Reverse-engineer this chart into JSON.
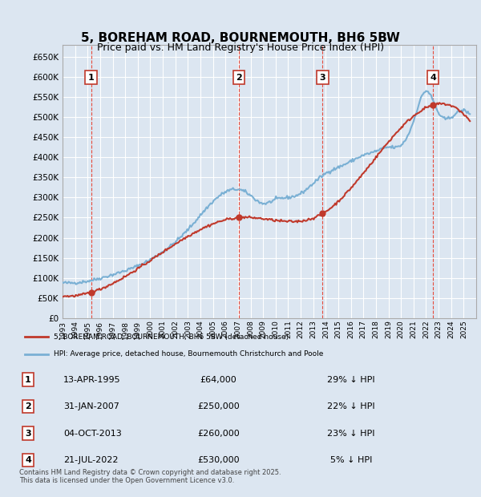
{
  "title": "5, BOREHAM ROAD, BOURNEMOUTH, BH6 5BW",
  "subtitle": "Price paid vs. HM Land Registry's House Price Index (HPI)",
  "ylabel": "",
  "ylim": [
    0,
    680000
  ],
  "yticks": [
    0,
    50000,
    100000,
    150000,
    200000,
    250000,
    300000,
    350000,
    400000,
    450000,
    500000,
    550000,
    600000,
    650000
  ],
  "xlim_start": 1993.0,
  "xlim_end": 2026.0,
  "bg_color": "#dce6f1",
  "plot_bg_color": "#dce6f1",
  "grid_color": "#ffffff",
  "hpi_color": "#7ab0d4",
  "price_color": "#c0392b",
  "sale_marker_color": "#c0392b",
  "vline_color": "#e74c3c",
  "box_color": "#c0392b",
  "legend_bg": "#ffffff",
  "legend_border": "#aaaaaa",
  "transactions": [
    {
      "num": 1,
      "date": "13-APR-1995",
      "date_x": 1995.28,
      "price": 64000,
      "label": "29% ↓ HPI"
    },
    {
      "num": 2,
      "date": "31-JAN-2007",
      "date_x": 2007.08,
      "price": 250000,
      "label": "22% ↓ HPI"
    },
    {
      "num": 3,
      "date": "04-OCT-2013",
      "date_x": 2013.75,
      "price": 260000,
      "label": "23% ↓ HPI"
    },
    {
      "num": 4,
      "date": "21-JUL-2022",
      "date_x": 2022.55,
      "price": 530000,
      "label": "5% ↓ HPI"
    }
  ],
  "footer": "Contains HM Land Registry data © Crown copyright and database right 2025.\nThis data is licensed under the Open Government Licence v3.0.",
  "legend_line1": "5, BOREHAM ROAD, BOURNEMOUTH, BH6 5BW (detached house)",
  "legend_line2": "HPI: Average price, detached house, Bournemouth Christchurch and Poole"
}
